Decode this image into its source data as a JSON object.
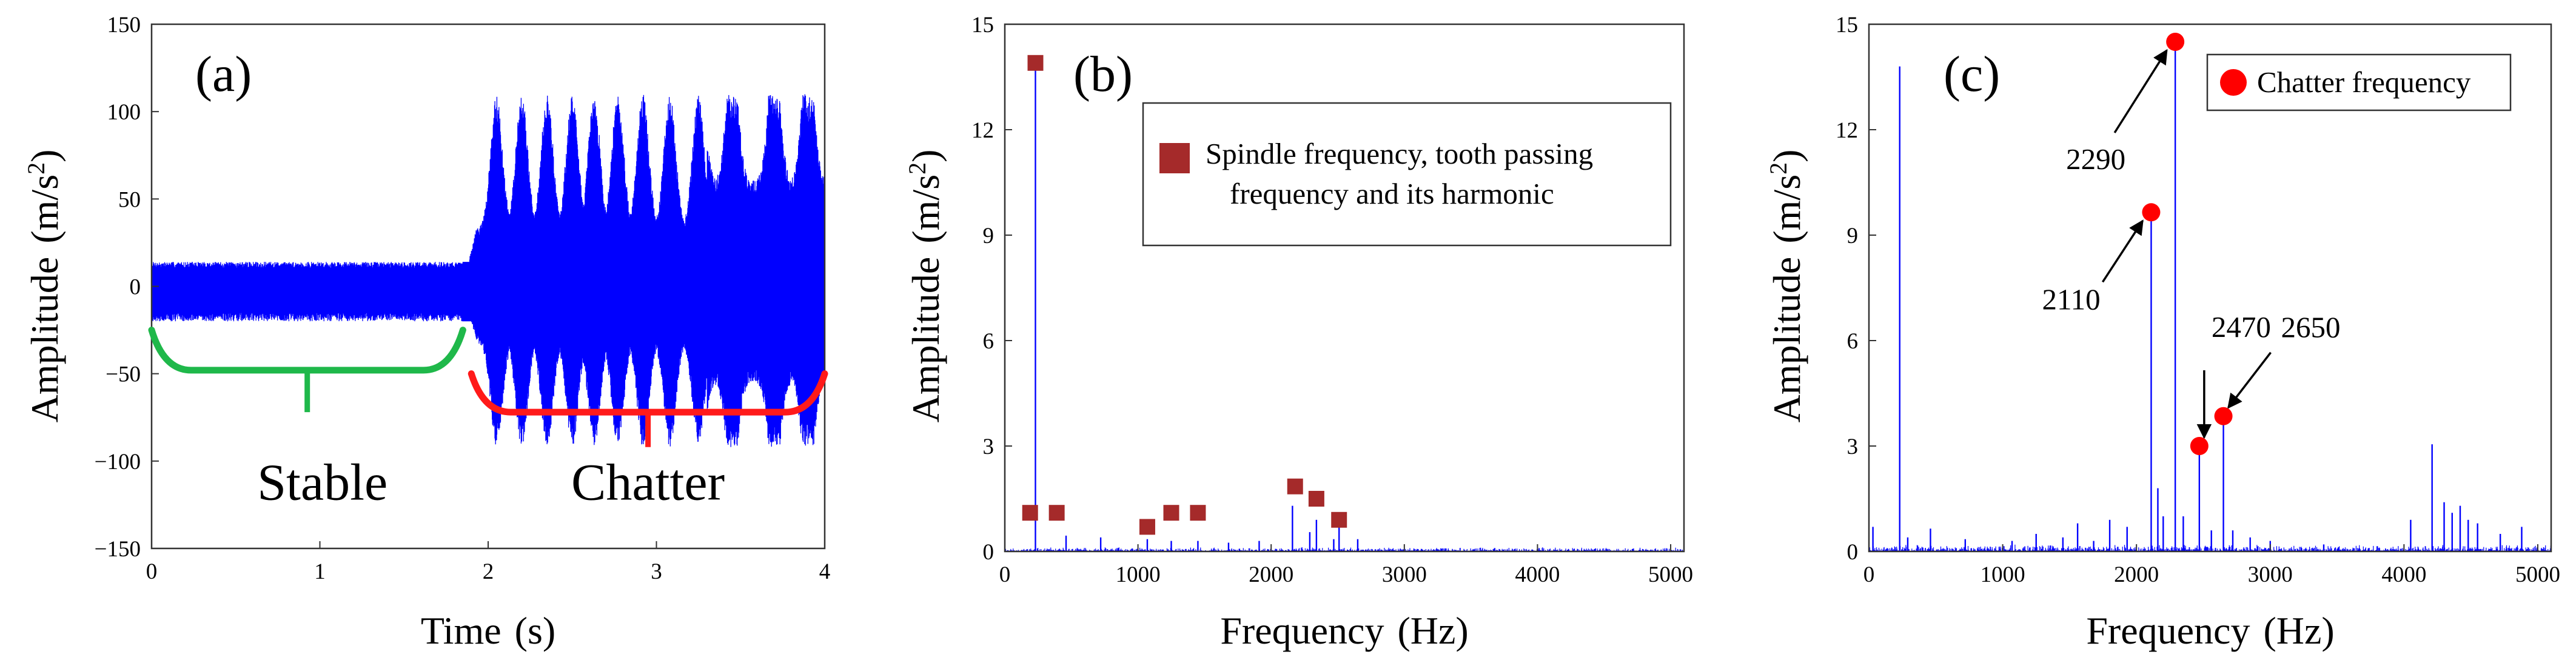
{
  "chart_data": [
    {
      "panel": "(a)",
      "type": "line",
      "xlabel_main": "Time",
      "xlabel_unit": "(s)",
      "ylabel_main": "Amplitude",
      "ylabel_unit": "(m/s",
      "ylabel_sup": "2",
      "ylabel_close": ")",
      "xlim": [
        0,
        4
      ],
      "ylim": [
        -150,
        150
      ],
      "xticks": [
        "0",
        "1",
        "2",
        "3",
        "4"
      ],
      "yticks": [
        "150",
        "100",
        "50",
        "0",
        "−50",
        "−100",
        "−150"
      ],
      "regions": [
        {
          "label": "Stable",
          "x_start": 0.0,
          "x_end": 1.85,
          "color": "#1fb84a"
        },
        {
          "label": "Chatter",
          "x_start": 1.9,
          "x_end": 4.0,
          "color": "#ff1a1a"
        }
      ],
      "signal": {
        "color": "#0000ff",
        "stable_envelope": {
          "t_end": 1.85,
          "upper": 14,
          "lower": -20
        },
        "chatter_burst_centers": [
          2.05,
          2.2,
          2.35,
          2.5,
          2.63,
          2.77,
          2.92,
          3.08,
          3.25,
          3.45,
          3.7,
          3.9
        ],
        "chatter_peak": 110,
        "chatter_trough": -92
      }
    },
    {
      "panel": "(b)",
      "type": "spectrum",
      "xlabel_main": "Frequency",
      "xlabel_unit": "(Hz)",
      "ylabel_main": "Amplitude",
      "ylabel_unit": "(m/s",
      "ylabel_sup": "2",
      "ylabel_close": ")",
      "xlim": [
        0,
        5100
      ],
      "ylim": [
        0,
        15
      ],
      "xticks": [
        "0",
        "1000",
        "2000",
        "3000",
        "4000",
        "5000"
      ],
      "yticks": [
        "15",
        "12",
        "9",
        "6",
        "3",
        "0"
      ],
      "line_color": "#0000ff",
      "marker_color": "#a52a2a",
      "legend": {
        "line1": "Spindle frequency, tooth passing",
        "line2": "frequency and its harmonic"
      },
      "markers": [
        {
          "x": 190,
          "y": 1.1
        },
        {
          "x": 230,
          "y": 13.9
        },
        {
          "x": 390,
          "y": 1.1
        },
        {
          "x": 1070,
          "y": 0.7
        },
        {
          "x": 1250,
          "y": 1.1
        },
        {
          "x": 1450,
          "y": 1.1
        },
        {
          "x": 2180,
          "y": 1.85
        },
        {
          "x": 2340,
          "y": 1.5
        },
        {
          "x": 2510,
          "y": 0.9
        }
      ],
      "peaks": [
        {
          "x": 230,
          "y": 13.9
        },
        {
          "x": 460,
          "y": 0.45
        },
        {
          "x": 720,
          "y": 0.4
        },
        {
          "x": 850,
          "y": 0.1
        },
        {
          "x": 1070,
          "y": 0.35
        },
        {
          "x": 1250,
          "y": 0.3
        },
        {
          "x": 1450,
          "y": 0.3
        },
        {
          "x": 1680,
          "y": 0.25
        },
        {
          "x": 1910,
          "y": 0.3
        },
        {
          "x": 2160,
          "y": 1.3
        },
        {
          "x": 2290,
          "y": 0.55
        },
        {
          "x": 2340,
          "y": 0.9
        },
        {
          "x": 2470,
          "y": 0.35
        },
        {
          "x": 2510,
          "y": 0.7
        },
        {
          "x": 2650,
          "y": 0.35
        }
      ]
    },
    {
      "panel": "(c)",
      "type": "spectrum",
      "xlabel_main": "Frequency",
      "xlabel_unit": "(Hz)",
      "ylabel_main": "Amplitude",
      "ylabel_unit": "(m/s",
      "ylabel_sup": "2",
      "ylabel_close": ")",
      "xlim": [
        0,
        5100
      ],
      "ylim": [
        0,
        15
      ],
      "xticks": [
        "0",
        "1000",
        "2000",
        "3000",
        "4000",
        "5000"
      ],
      "yticks": [
        "15",
        "12",
        "9",
        "6",
        "3",
        "0"
      ],
      "line_color": "#0000ff",
      "marker_color": "#ff0000",
      "legend": {
        "label": "Chatter frequency"
      },
      "chatter_points": [
        {
          "x": 2290,
          "y": 14.5,
          "label": "2290"
        },
        {
          "x": 2110,
          "y": 9.65,
          "label": "2110"
        },
        {
          "x": 2470,
          "y": 3.0,
          "label": "2470"
        },
        {
          "x": 2650,
          "y": 3.85,
          "label": "2650"
        }
      ],
      "peaks": [
        {
          "x": 30,
          "y": 0.7
        },
        {
          "x": 230,
          "y": 13.8
        },
        {
          "x": 290,
          "y": 0.4
        },
        {
          "x": 460,
          "y": 0.65
        },
        {
          "x": 720,
          "y": 0.35
        },
        {
          "x": 1070,
          "y": 0.3
        },
        {
          "x": 1250,
          "y": 0.5
        },
        {
          "x": 1450,
          "y": 0.4
        },
        {
          "x": 1560,
          "y": 0.8
        },
        {
          "x": 1680,
          "y": 0.3
        },
        {
          "x": 1800,
          "y": 0.9
        },
        {
          "x": 1930,
          "y": 0.7
        },
        {
          "x": 2110,
          "y": 9.65
        },
        {
          "x": 2160,
          "y": 1.8
        },
        {
          "x": 2200,
          "y": 1.0
        },
        {
          "x": 2290,
          "y": 14.5
        },
        {
          "x": 2350,
          "y": 1.0
        },
        {
          "x": 2470,
          "y": 3.0
        },
        {
          "x": 2560,
          "y": 0.6
        },
        {
          "x": 2650,
          "y": 3.85
        },
        {
          "x": 2720,
          "y": 0.6
        },
        {
          "x": 2850,
          "y": 0.4
        },
        {
          "x": 3000,
          "y": 0.3
        },
        {
          "x": 3400,
          "y": 0.2
        },
        {
          "x": 3800,
          "y": 0.15
        },
        {
          "x": 4050,
          "y": 0.9
        },
        {
          "x": 4210,
          "y": 3.05
        },
        {
          "x": 4300,
          "y": 1.4
        },
        {
          "x": 4360,
          "y": 1.1
        },
        {
          "x": 4420,
          "y": 1.3
        },
        {
          "x": 4480,
          "y": 0.9
        },
        {
          "x": 4550,
          "y": 0.8
        },
        {
          "x": 4720,
          "y": 0.5
        },
        {
          "x": 4880,
          "y": 0.7
        }
      ]
    }
  ]
}
